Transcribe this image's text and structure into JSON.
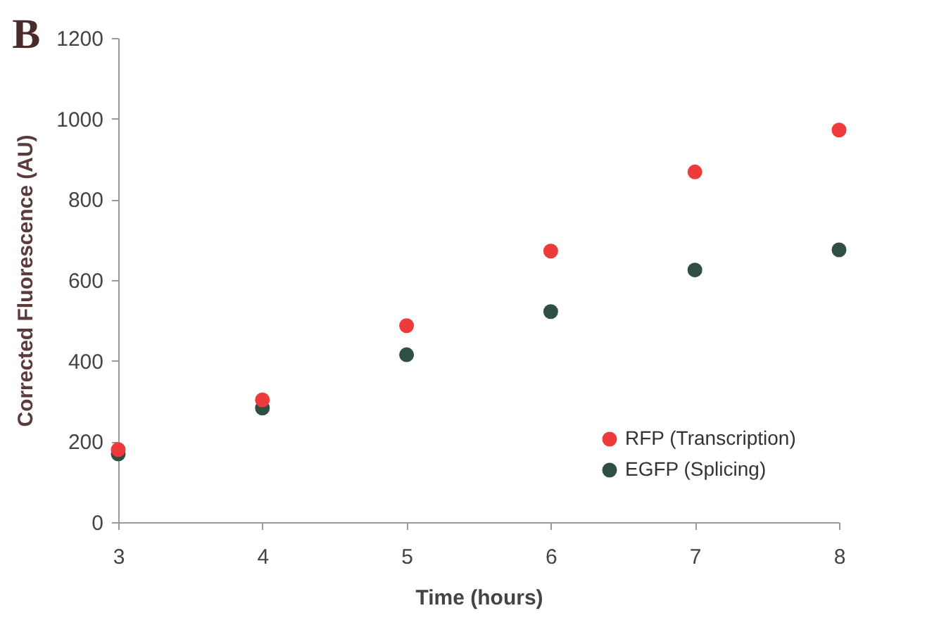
{
  "chart_data": {
    "type": "scatter",
    "title": "B",
    "xlabel": "Time (hours)",
    "ylabel": "Corrected Fluorescence (AU)",
    "x": [
      3,
      4,
      5,
      6,
      7,
      8
    ],
    "series": [
      {
        "name": "RFP (Transcription)",
        "color": "#ee3a3a",
        "values": [
          180,
          303,
          487,
          672,
          868,
          972
        ]
      },
      {
        "name": "EGFP (Splicing)",
        "color": "#2f4f42",
        "values": [
          169,
          283,
          415,
          522,
          625,
          675
        ]
      }
    ],
    "xlim": [
      3,
      8
    ],
    "xticks": [
      3,
      4,
      5,
      6,
      7,
      8
    ],
    "ylim": [
      0,
      1200
    ],
    "yticks": [
      0,
      200,
      400,
      600,
      800,
      1000,
      1200
    ],
    "grid": false,
    "legend": "bottom right",
    "marker": "circle"
  }
}
